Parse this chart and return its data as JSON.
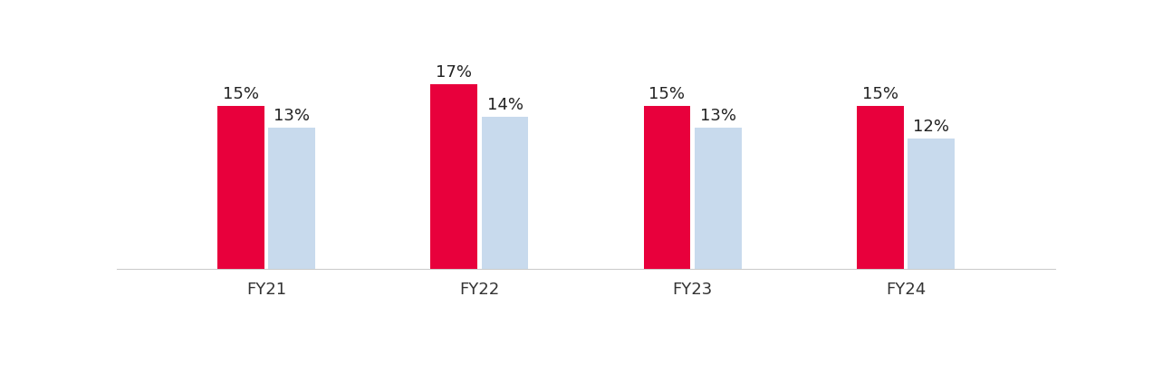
{
  "categories": [
    "FY21",
    "FY22",
    "FY23",
    "FY24"
  ],
  "suisse_values": [
    15,
    17,
    15,
    15
  ],
  "europe_values": [
    13,
    14,
    13,
    12
  ],
  "suisse_color": "#E8003C",
  "europe_color": "#C8DAED",
  "bar_width": 0.22,
  "label_fontsize": 13,
  "tick_fontsize": 13,
  "legend_fontsize": 12,
  "background_color": "#FFFFFF",
  "ylim": [
    0,
    22
  ],
  "xlim": [
    -0.7,
    3.7
  ]
}
